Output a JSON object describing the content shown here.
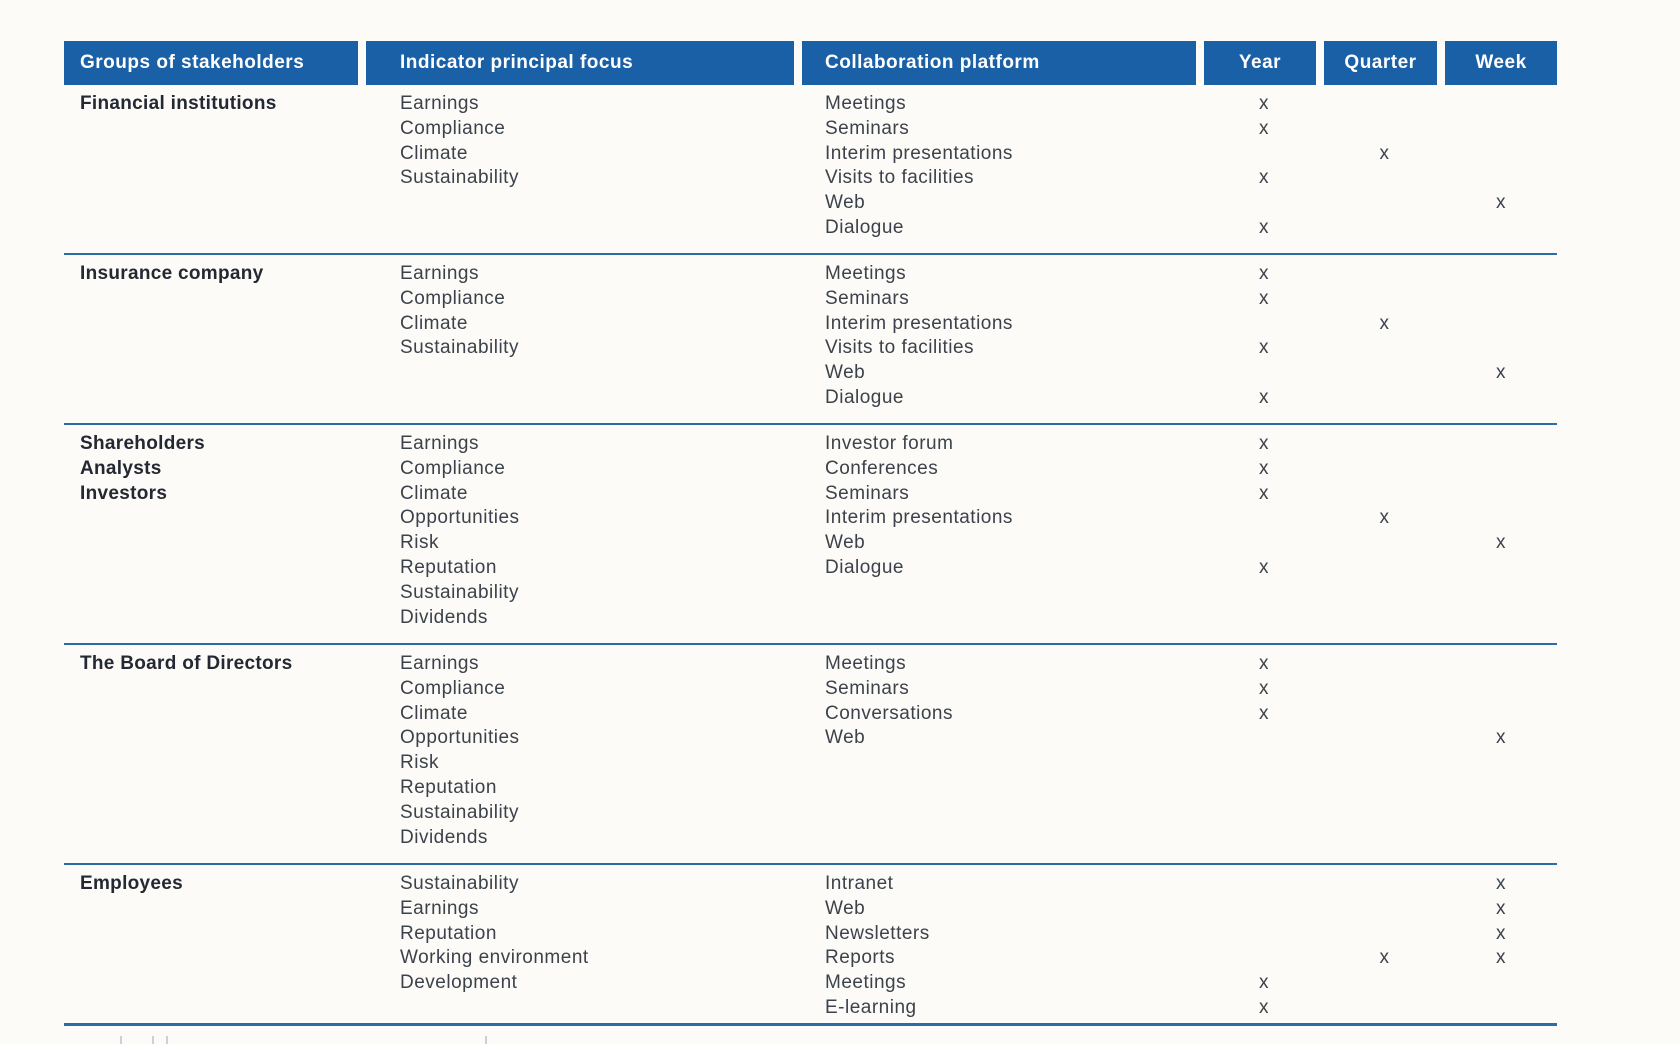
{
  "table": {
    "columns": [
      "Groups of stakeholders",
      "Indicator principal focus",
      "Collaboration platform",
      "Year",
      "Quarter",
      "Week"
    ],
    "mark_symbol": "x",
    "groups": [
      {
        "stakeholders": [
          "Financial institutions"
        ],
        "indicators": [
          "Earnings",
          "Compliance",
          "Climate",
          "Sustainability"
        ],
        "platforms": [
          {
            "name": "Meetings",
            "year": "x",
            "quarter": "",
            "week": ""
          },
          {
            "name": "Seminars",
            "year": "x",
            "quarter": "",
            "week": ""
          },
          {
            "name": "Interim presentations",
            "year": "",
            "quarter": "x",
            "week": ""
          },
          {
            "name": "Visits to facilities",
            "year": "x",
            "quarter": "",
            "week": ""
          },
          {
            "name": "Web",
            "year": "",
            "quarter": "",
            "week": "x"
          },
          {
            "name": "Dialogue",
            "year": "x",
            "quarter": "",
            "week": ""
          }
        ]
      },
      {
        "stakeholders": [
          "Insurance company"
        ],
        "indicators": [
          "Earnings",
          "Compliance",
          "Climate",
          "Sustainability"
        ],
        "platforms": [
          {
            "name": "Meetings",
            "year": "x",
            "quarter": "",
            "week": ""
          },
          {
            "name": "Seminars",
            "year": "x",
            "quarter": "",
            "week": ""
          },
          {
            "name": "Interim presentations",
            "year": "",
            "quarter": "x",
            "week": ""
          },
          {
            "name": "Visits to facilities",
            "year": "x",
            "quarter": "",
            "week": ""
          },
          {
            "name": "Web",
            "year": "",
            "quarter": "",
            "week": "x"
          },
          {
            "name": "Dialogue",
            "year": "x",
            "quarter": "",
            "week": ""
          }
        ]
      },
      {
        "stakeholders": [
          "Shareholders",
          "Analysts",
          "Investors"
        ],
        "indicators": [
          "Earnings",
          "Compliance",
          "Climate",
          "Opportunities",
          "Risk",
          "Reputation",
          "Sustainability",
          "Dividends"
        ],
        "platforms": [
          {
            "name": "Investor forum",
            "year": "x",
            "quarter": "",
            "week": ""
          },
          {
            "name": "Conferences",
            "year": "x",
            "quarter": "",
            "week": ""
          },
          {
            "name": "Seminars",
            "year": "x",
            "quarter": "",
            "week": ""
          },
          {
            "name": "Interim presentations",
            "year": "",
            "quarter": "x",
            "week": ""
          },
          {
            "name": "Web",
            "year": "",
            "quarter": "",
            "week": "x"
          },
          {
            "name": "Dialogue",
            "year": "x",
            "quarter": "",
            "week": ""
          }
        ]
      },
      {
        "stakeholders": [
          "The Board of Directors"
        ],
        "indicators": [
          "Earnings",
          "Compliance",
          "Climate",
          "Opportunities",
          "Risk",
          "Reputation",
          "Sustainability",
          "Dividends"
        ],
        "platforms": [
          {
            "name": "Meetings",
            "year": "x",
            "quarter": "",
            "week": ""
          },
          {
            "name": "Seminars",
            "year": "x",
            "quarter": "",
            "week": ""
          },
          {
            "name": "Conversations",
            "year": "x",
            "quarter": "",
            "week": ""
          },
          {
            "name": "Web",
            "year": "",
            "quarter": "",
            "week": "x"
          }
        ]
      },
      {
        "stakeholders": [
          "Employees"
        ],
        "indicators": [
          "Sustainability",
          "Earnings",
          "Reputation",
          "Working environment",
          "Development"
        ],
        "platforms": [
          {
            "name": "Intranet",
            "year": "",
            "quarter": "",
            "week": "x"
          },
          {
            "name": "Web",
            "year": "",
            "quarter": "",
            "week": "x"
          },
          {
            "name": "Newsletters",
            "year": "",
            "quarter": "",
            "week": "x"
          },
          {
            "name": "Reports",
            "year": "",
            "quarter": "x",
            "week": "x"
          },
          {
            "name": "Meetings",
            "year": "x",
            "quarter": "",
            "week": ""
          },
          {
            "name": "E-learning",
            "year": "x",
            "quarter": "",
            "week": ""
          }
        ]
      }
    ]
  },
  "colors": {
    "page_bg": "#FCFBF7",
    "header_bg": "#1A60A7",
    "header_text": "#FFFFFF",
    "divider": "#2B6BA8",
    "text": "#3C424B",
    "bold_text": "#232832"
  }
}
